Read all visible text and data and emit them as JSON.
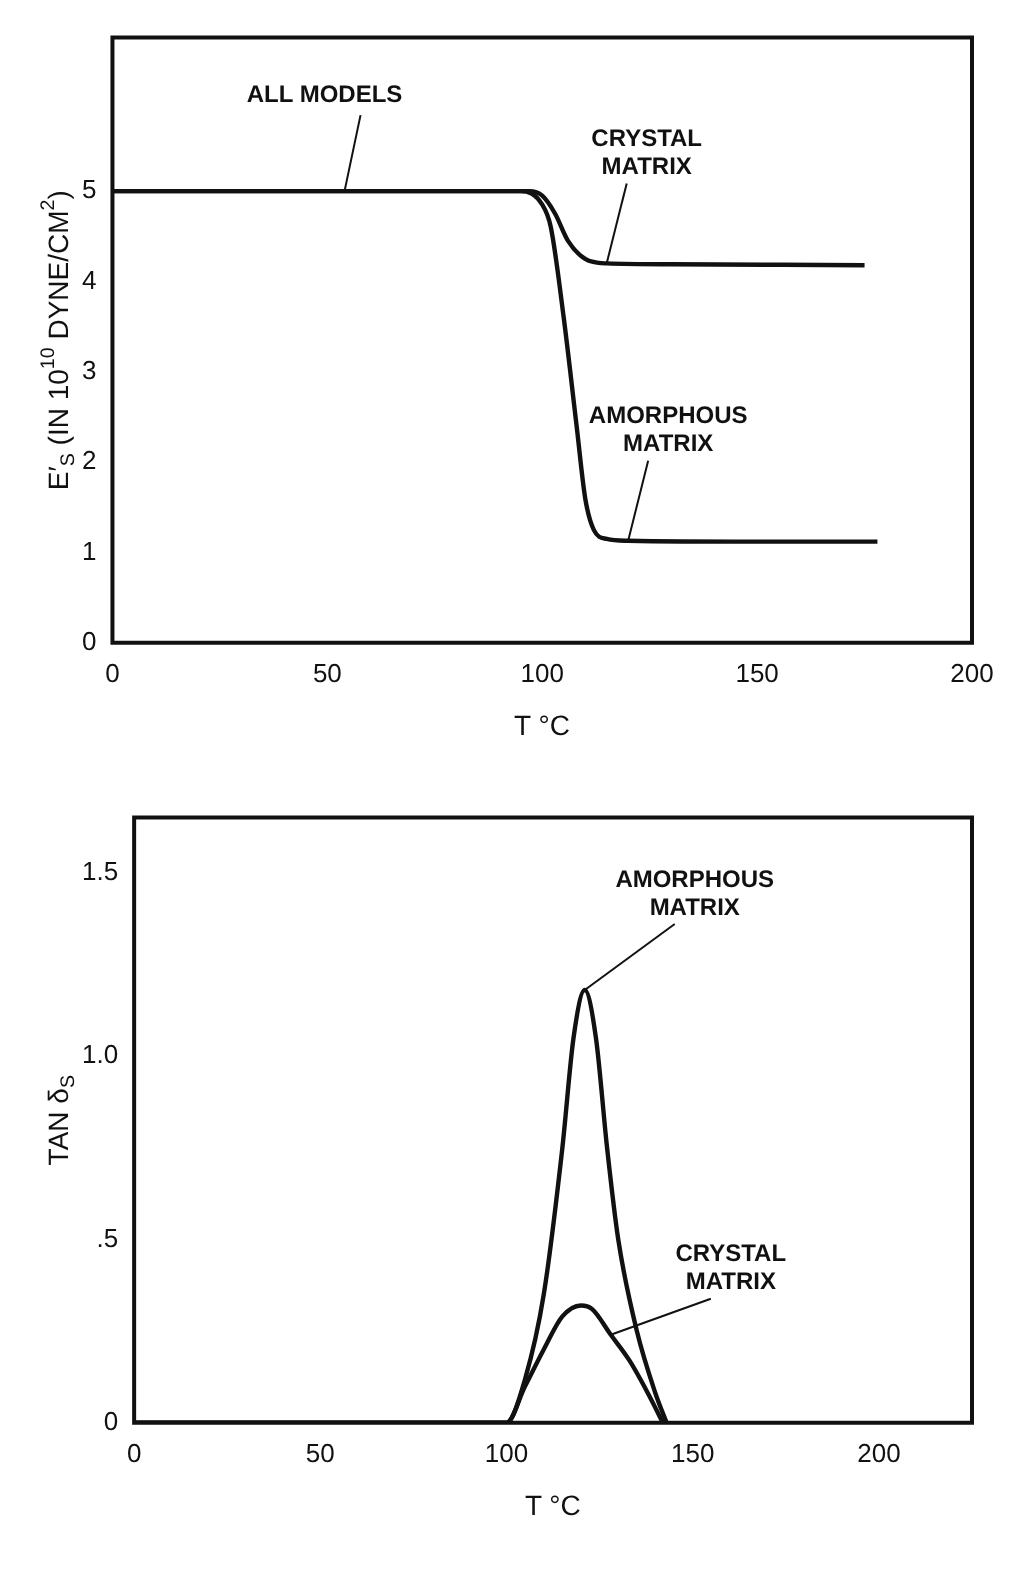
{
  "chart_data": [
    {
      "type": "line",
      "xlabel": "T °C",
      "ylabel": "E′$_{S}$ (IN 10$^{10}$ DYNE/CM$^{2}$)",
      "xlim": [
        0,
        200
      ],
      "xticks": [
        0,
        50,
        100,
        150,
        200
      ],
      "ylim": [
        0,
        6.7
      ],
      "yticks": [
        0,
        1,
        2,
        3,
        4,
        5
      ],
      "grid": false,
      "legend": false,
      "marker": "none",
      "line_style": "solid",
      "annotations": [
        {
          "text": "ALL MODELS",
          "x": 54,
          "y": 5
        }
      ],
      "series": [
        {
          "name": "CRYSTAL MATRIX",
          "color": "#111111",
          "x": [
            0,
            50,
            97,
            100,
            103,
            106,
            110,
            115,
            130,
            175
          ],
          "values": [
            5,
            5,
            5,
            4.95,
            4.75,
            4.45,
            4.25,
            4.2,
            4.19,
            4.18
          ]
        },
        {
          "name": "AMORPHOUS MATRIX",
          "color": "#111111",
          "x": [
            0,
            50,
            95,
            100,
            102,
            105,
            108,
            110,
            112,
            115,
            120,
            150,
            178
          ],
          "values": [
            5,
            5,
            5,
            4.85,
            4.6,
            3.6,
            2.4,
            1.6,
            1.25,
            1.15,
            1.13,
            1.12,
            1.12
          ]
        }
      ]
    },
    {
      "type": "line",
      "xlabel": "T °C",
      "ylabel": "TAN δ$_{S}$",
      "xlim": [
        0,
        225
      ],
      "xticks": [
        0,
        50,
        100,
        150,
        200
      ],
      "ylim": [
        0,
        1.65
      ],
      "yticks": [
        0,
        {
          "value": 0.5,
          "label": ".5"
        },
        {
          "value": 1,
          "label": "1.0"
        },
        {
          "value": 1.5,
          "label": "1.5"
        }
      ],
      "grid": false,
      "legend": false,
      "marker": "none",
      "line_style": "solid",
      "series": [
        {
          "name": "AMORPHOUS MATRIX",
          "color": "#111111",
          "x": [
            0,
            100,
            105,
            110,
            115,
            118,
            121,
            124,
            127,
            130,
            135,
            140,
            143
          ],
          "values": [
            0,
            0,
            0.12,
            0.35,
            0.75,
            1.05,
            1.18,
            1.05,
            0.75,
            0.5,
            0.25,
            0.08,
            0
          ]
        },
        {
          "name": "CRYSTAL MATRIX",
          "color": "#111111",
          "x": [
            0,
            100,
            105,
            110,
            115,
            120,
            123,
            128,
            133,
            138,
            142
          ],
          "values": [
            0,
            0,
            0.1,
            0.2,
            0.29,
            0.32,
            0.31,
            0.24,
            0.17,
            0.08,
            0
          ]
        }
      ]
    }
  ]
}
